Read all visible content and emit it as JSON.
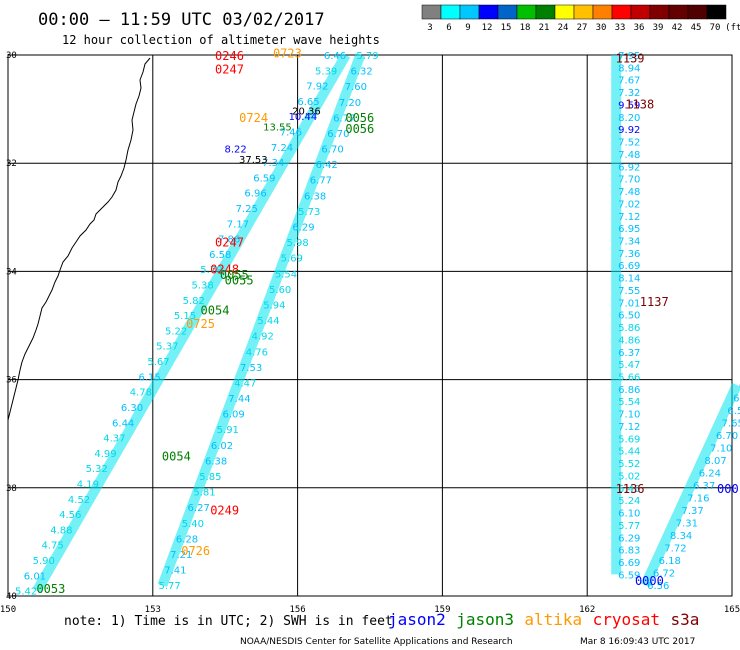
{
  "header": {
    "title": "00:00 – 11:59 UTC 03/02/2017",
    "subtitle": "12 hour collection of altimeter wave heights"
  },
  "colorbar": {
    "colors": [
      "#808080",
      "#00ffff",
      "#00c8ff",
      "#0000ff",
      "#0064c8",
      "#00c000",
      "#008000",
      "#ffff00",
      "#ffc000",
      "#ff8000",
      "#ff0000",
      "#c00000",
      "#800000",
      "#640000",
      "#500000",
      "#000000"
    ],
    "labels": [
      "3",
      "6",
      "9",
      "12",
      "15",
      "18",
      "21",
      "24",
      "27",
      "30",
      "33",
      "36",
      "39",
      "42",
      "45",
      "70",
      "(ft)"
    ]
  },
  "axes": {
    "lon_ticks": [
      "150",
      "153",
      "156",
      "159",
      "162",
      "165"
    ],
    "lat_ticks": [
      "30",
      "32",
      "34",
      "36",
      "38",
      "40"
    ]
  },
  "legend": {
    "note": "note: 1) Time is in UTC; 2) SWH is in feet",
    "satellites": [
      {
        "name": "jason2",
        "color": "#0000ff"
      },
      {
        "name": "jason3",
        "color": "#008000"
      },
      {
        "name": "altika",
        "color": "#ff9900"
      },
      {
        "name": "cryosat",
        "color": "#ff0000"
      },
      {
        "name": "s3a",
        "color": "#800000"
      }
    ],
    "credit": "NOAA/NESDIS Center for Satellite Applications and Research",
    "timestamp": "Mar  8 16:09:43 UTC 2017"
  },
  "chart_data": {
    "type": "scatter",
    "xlim": [
      150,
      165
    ],
    "ylim": [
      40,
      30
    ],
    "xlabel": "",
    "ylabel": "",
    "tracks": [
      {
        "satellite": "cryosat",
        "start": [
          157.0,
          30.0
        ],
        "end": [
          150.6,
          39.9
        ],
        "values": [
          "6.46",
          "5.39",
          "7.92",
          "6.65",
          "10.44",
          "7.46",
          "7.24",
          "7.34",
          "6.59",
          "6.96",
          "7.25",
          "7.17",
          "7.86",
          "6.58",
          "5.79",
          "5.38",
          "5.82",
          "5.15",
          "5.22",
          "5.37",
          "5.67",
          "6.15",
          "4.78",
          "6.30",
          "6.44",
          "4.37",
          "4.99",
          "5.32",
          "4.19",
          "4.52",
          "4.56",
          "4.88",
          "4.75",
          "5.90",
          "6.01",
          "5.42"
        ]
      },
      {
        "satellite": "altika",
        "start": [
          157.3,
          30.0
        ],
        "end": [
          153.2,
          39.8
        ],
        "values": [
          "5.79",
          "6.32",
          "7.60",
          "7.20",
          "6.77",
          "6.70",
          "6.70",
          "6.42",
          "6.77",
          "6.38",
          "5.73",
          "6.29",
          "5.98",
          "5.69",
          "5.54",
          "5.60",
          "5.94",
          "5.44",
          "4.92",
          "4.76",
          "7.53",
          "4.47",
          "7.44",
          "6.09",
          "5.91",
          "6.02",
          "6.38",
          "5.85",
          "5.81",
          "6.27",
          "5.40",
          "6.28",
          "7.21",
          "7.41",
          "5.77"
        ]
      },
      {
        "satellite": "s3a",
        "start": [
          162.6,
          30.0
        ],
        "end": [
          162.6,
          39.6
        ],
        "values": [
          "7.95",
          "8.94",
          "7.67",
          "7.32",
          "9.59",
          "8.20",
          "9.92",
          "7.52",
          "7.48",
          "6.92",
          "7.70",
          "7.48",
          "7.02",
          "7.12",
          "6.95",
          "7.34",
          "7.36",
          "6.69",
          "8.14",
          "7.55",
          "7.01",
          "6.50",
          "5.86",
          "4.86",
          "6.37",
          "5.47",
          "5.66",
          "6.86",
          "5.54",
          "7.10",
          "7.12",
          "5.69",
          "5.44",
          "5.52",
          "5.02",
          "5.48",
          "5.24",
          "6.10",
          "5.77",
          "6.29",
          "6.83",
          "6.69",
          "6.59"
        ]
      },
      {
        "satellite": "jason3",
        "start": [
          165.1,
          36.1
        ],
        "end": [
          163.2,
          39.8
        ],
        "values": [
          "6.9",
          "6.9",
          "6.55",
          "7.65",
          "6.70",
          "7.10",
          "8.07",
          "6.24",
          "6.37",
          "7.16",
          "7.37",
          "7.31",
          "8.34",
          "7.72",
          "6.18",
          "6.72",
          "6.56"
        ]
      }
    ],
    "pass_times": [
      {
        "t": "0246",
        "color": "#ff0000"
      },
      {
        "t": "0723",
        "color": "#ff9900"
      },
      {
        "t": "0247",
        "color": "#ff0000"
      },
      {
        "t": "0724",
        "color": "#ff9900"
      },
      {
        "t": "0056",
        "color": "#008000"
      },
      {
        "t": "0056",
        "color": "#008000"
      },
      {
        "t": "0247",
        "color": "#ff0000"
      },
      {
        "t": "0248",
        "color": "#ff0000"
      },
      {
        "t": "0055",
        "color": "#008000"
      },
      {
        "t": "0055",
        "color": "#008000"
      },
      {
        "t": "0054",
        "color": "#008000"
      },
      {
        "t": "0725",
        "color": "#ff9900"
      },
      {
        "t": "0054",
        "color": "#008000"
      },
      {
        "t": "0249",
        "color": "#ff0000"
      },
      {
        "t": "0726",
        "color": "#ff9900"
      },
      {
        "t": "0053",
        "color": "#008000"
      },
      {
        "t": "1139",
        "color": "#800000"
      },
      {
        "t": "1138",
        "color": "#800000"
      },
      {
        "t": "1137",
        "color": "#800000"
      },
      {
        "t": "1136",
        "color": "#800000"
      },
      {
        "t": "0000",
        "color": "#0000ff"
      },
      {
        "t": "000",
        "color": "#0000ff"
      }
    ],
    "highlight_values": [
      {
        "v": "20.36",
        "color": "#000000"
      },
      {
        "v": "13.55",
        "color": "#008000"
      },
      {
        "v": "37.53",
        "color": "#000000"
      },
      {
        "v": "8.22",
        "color": "#0000ff"
      }
    ]
  }
}
